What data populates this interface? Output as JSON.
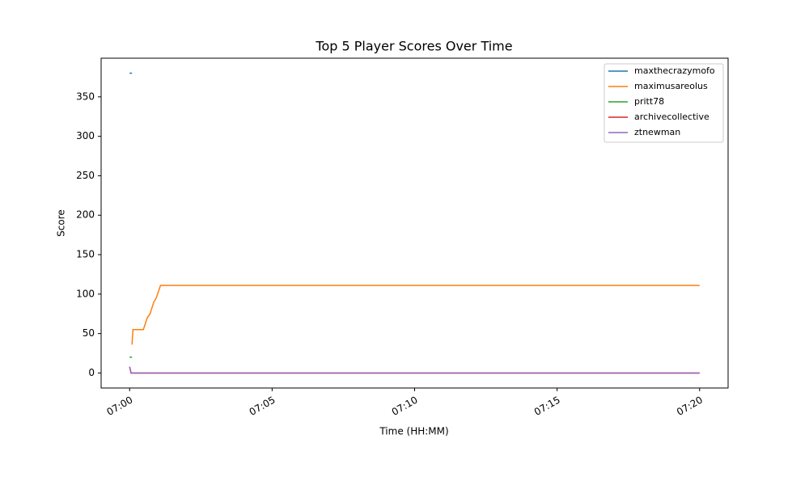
{
  "chart_data": {
    "type": "line",
    "title": "Top 5 Player Scores Over Time",
    "x_label": "Time (HH:MM)",
    "y_label": "Score",
    "series": [
      {
        "name": "maxthecrazymofo",
        "color": "#1f77b4",
        "x": [
          "07:00:00",
          "07:00:05"
        ],
        "values": [
          380,
          380
        ]
      },
      {
        "name": "maximusareolus",
        "color": "#ff7f0e",
        "x": [
          "07:00:05",
          "07:00:07",
          "07:00:29",
          "07:00:37",
          "07:00:43",
          "07:00:51",
          "07:00:56",
          "07:01:05",
          "07:20:00"
        ],
        "values": [
          36,
          55,
          55,
          70,
          75,
          90,
          95,
          111,
          111
        ]
      },
      {
        "name": "pritt78",
        "color": "#2ca02c",
        "x": [
          "07:00:00",
          "07:00:05"
        ],
        "values": [
          20,
          20
        ]
      },
      {
        "name": "archivecollective",
        "color": "#d62728",
        "x": [
          "07:00:00",
          "07:00:03",
          "07:20:00"
        ],
        "values": [
          8,
          0,
          0
        ]
      },
      {
        "name": "ztnewman",
        "color": "#9467bd",
        "x": [
          "07:00:00",
          "07:00:03",
          "07:20:00"
        ],
        "values": [
          8,
          0,
          0
        ]
      }
    ],
    "xlim": [
      "06:59:00",
      "07:21:00"
    ],
    "xticks": [
      "07:00",
      "07:05",
      "07:10",
      "07:15",
      "07:20"
    ],
    "ylim": [
      -19,
      399
    ],
    "yticks": [
      0,
      50,
      100,
      150,
      200,
      250,
      300,
      350
    ],
    "legend": "upper-right",
    "grid": false
  }
}
